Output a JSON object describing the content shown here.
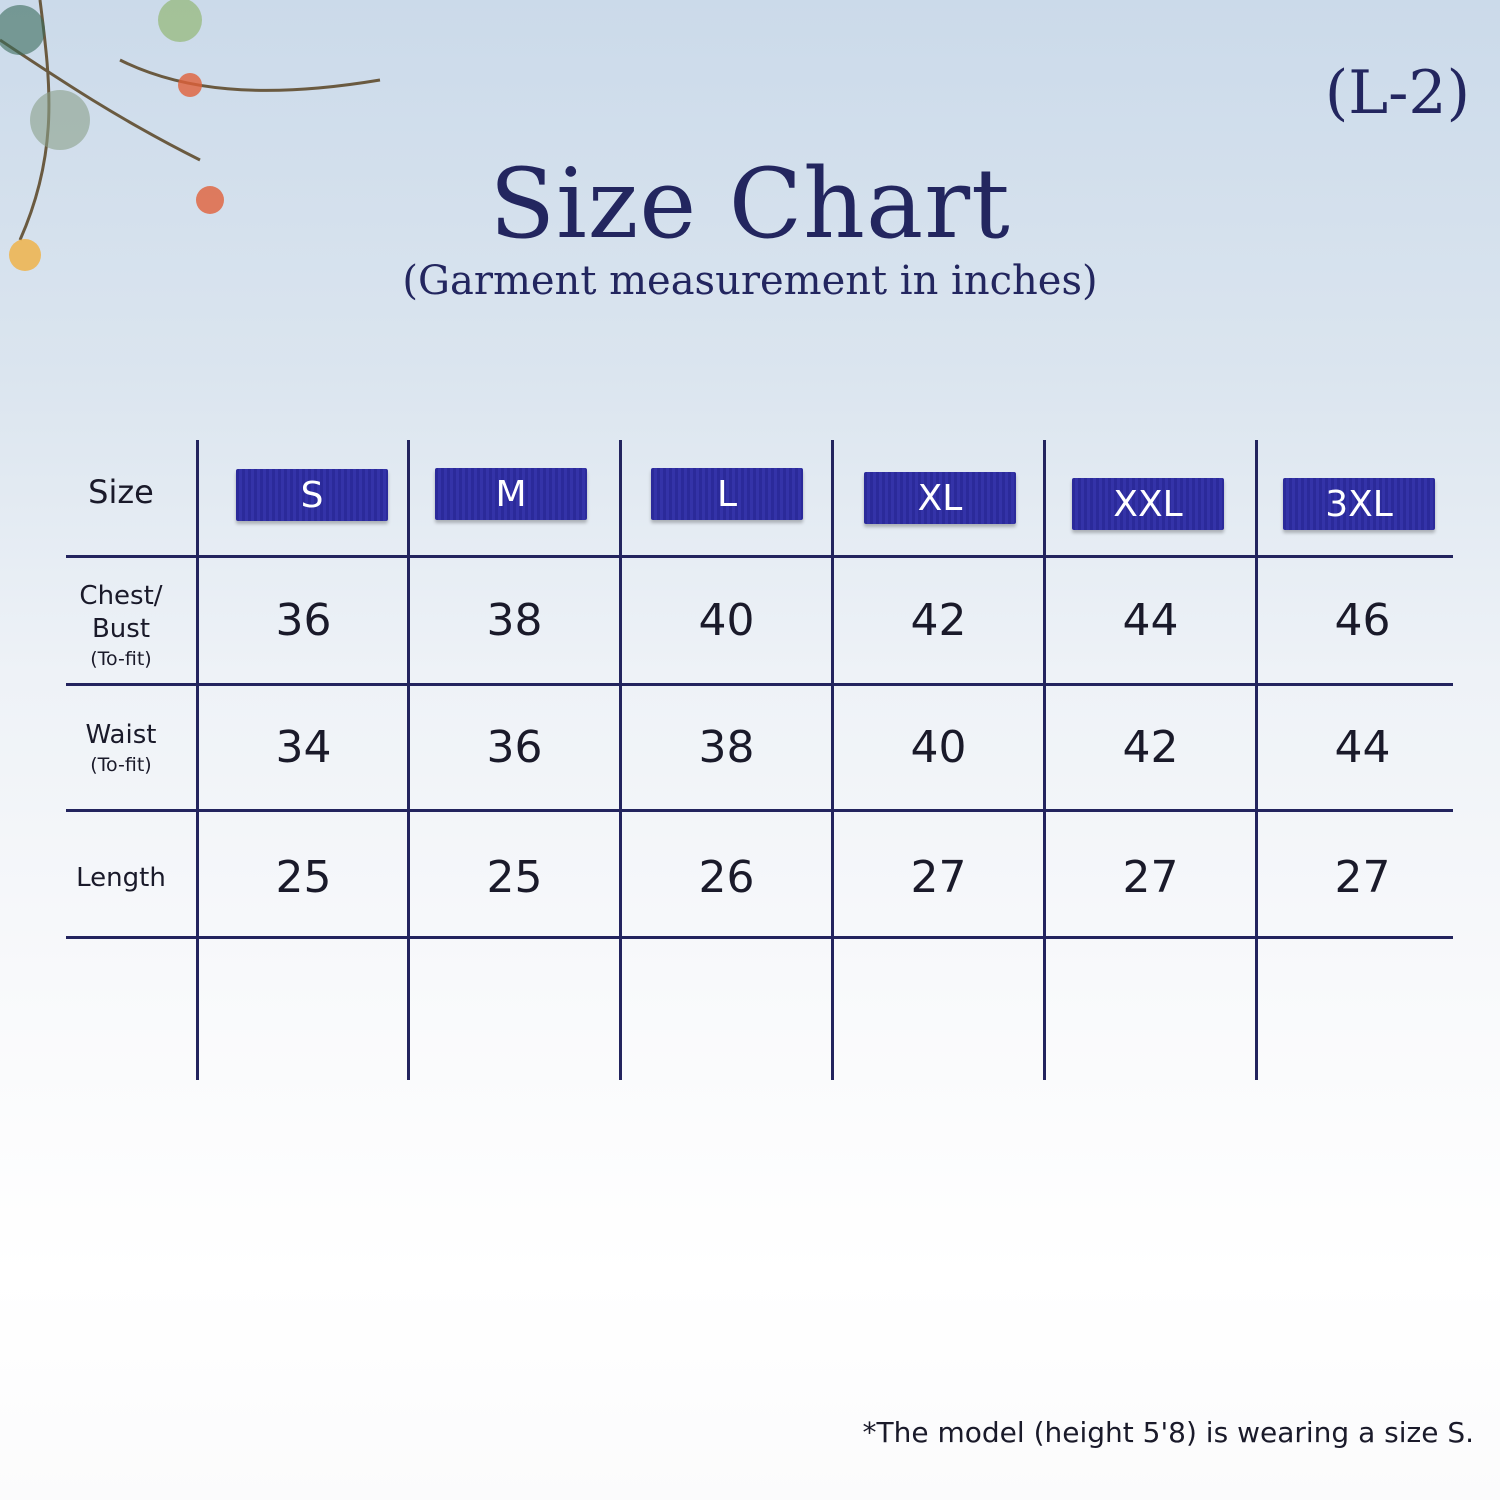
{
  "code": "(L-2)",
  "title": "Size Chart",
  "subtitle": "(Garment measurement in inches)",
  "table": {
    "header_label": "Size",
    "sizes": [
      "S",
      "M",
      "L",
      "XL",
      "XXL",
      "3XL"
    ],
    "rows": [
      {
        "label": "Chest/ Bust",
        "sub": "(To-fit)",
        "values": [
          "36",
          "38",
          "40",
          "42",
          "44",
          "46"
        ]
      },
      {
        "label": "Waist",
        "sub": "(To-fit)",
        "values": [
          "34",
          "36",
          "38",
          "40",
          "42",
          "44"
        ]
      },
      {
        "label": "Length",
        "sub": "",
        "values": [
          "25",
          "25",
          "26",
          "27",
          "27",
          "27"
        ]
      }
    ]
  },
  "note": "*The model (height 5'8) is wearing a size S.",
  "colors": {
    "line": "#23245e",
    "badge": "#2b2a9a",
    "title": "#23265f"
  }
}
